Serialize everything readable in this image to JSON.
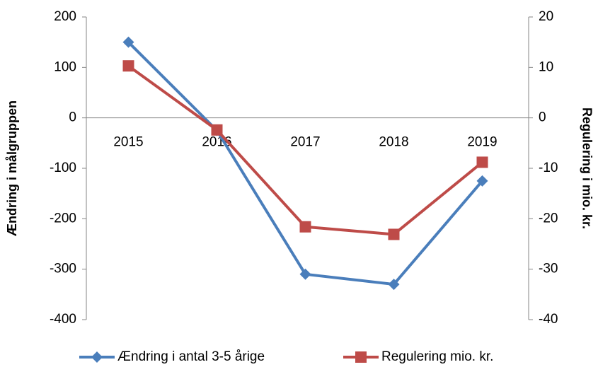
{
  "chart_data": {
    "type": "line",
    "categories": [
      "2015",
      "2016",
      "2017",
      "2018",
      "2019"
    ],
    "series": [
      {
        "name": "Ændring i antal 3-5 årige",
        "color": "#4a7ebb",
        "marker": "diamond",
        "axis": "y",
        "values": [
          150,
          -25,
          -310,
          -330,
          -125
        ]
      },
      {
        "name": "Regulering mio. kr.",
        "color": "#be4b48",
        "marker": "square",
        "axis": "y2",
        "values": [
          10.3,
          -2.4,
          -21.6,
          -23.1,
          -8.8
        ]
      }
    ],
    "ylabel": "Ændring i målgruppen",
    "y2label": "Regulering i mio. kr.",
    "ylim": [
      -400,
      200
    ],
    "yticks": [
      -400,
      -300,
      -200,
      -100,
      0,
      100,
      200
    ],
    "y2lim": [
      -40,
      20
    ],
    "y2ticks": [
      -40,
      -30,
      -20,
      -10,
      0,
      10,
      20
    ],
    "legend": "bottom"
  }
}
